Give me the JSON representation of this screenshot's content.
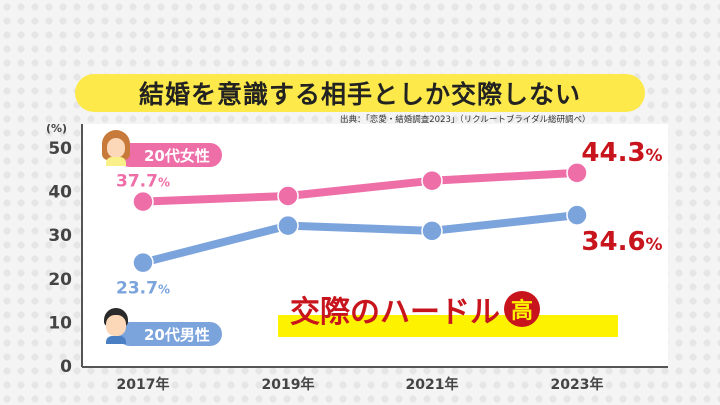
{
  "title": "結婚を意識する相手としか交際しない",
  "source": "出典：「恋愛・結婚調査2023」（リクルートブライダル総研調べ）",
  "callout": {
    "text": "交際のハードル",
    "badge": "高",
    "color": "#c8141c",
    "highlight": "#fdf200"
  },
  "chart_data": {
    "type": "line",
    "ylabel": "(%)",
    "ylim": [
      0,
      50
    ],
    "yticks": [
      0,
      10,
      20,
      30,
      40,
      50
    ],
    "categories": [
      "2017年",
      "2019年",
      "2021年",
      "2023年"
    ],
    "grid": false,
    "series": [
      {
        "name": "20代女性",
        "color": "#ee6ea8",
        "values": [
          37.7,
          39.0,
          42.5,
          44.3
        ],
        "labels": [
          {
            "index": 0,
            "text": "37.7",
            "unit": "%",
            "color": "#ee6ea8"
          },
          {
            "index": 3,
            "text": "44.3",
            "unit": "%",
            "color": "#c8141c"
          }
        ]
      },
      {
        "name": "20代男性",
        "color": "#7ba3dc",
        "values": [
          23.7,
          32.2,
          31.0,
          34.6
        ],
        "labels": [
          {
            "index": 0,
            "text": "23.7",
            "unit": "%",
            "color": "#7ba3dc"
          },
          {
            "index": 3,
            "text": "34.6",
            "unit": "%",
            "color": "#c8141c"
          }
        ]
      }
    ]
  }
}
